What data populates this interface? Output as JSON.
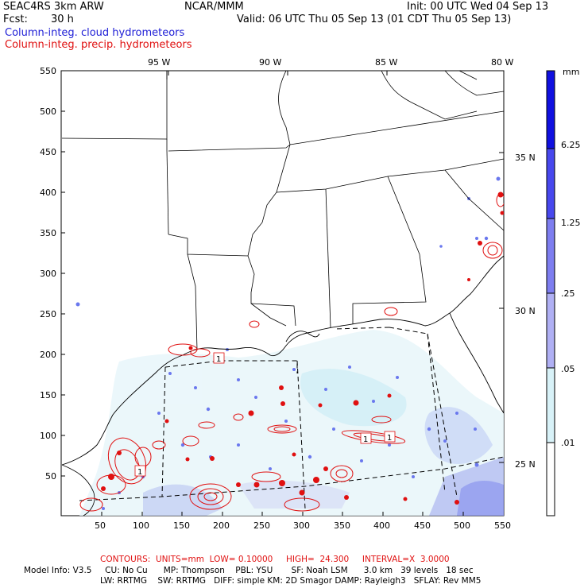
{
  "header": {
    "model": "SEAC4RS  3km ARW",
    "center": "NCAR/MMM",
    "init": "Init: 00 UTC Wed 04 Sep 13",
    "fcst_label": "Fcst:",
    "fcst_value": "30 h",
    "valid": "Valid: 06 UTC Thu 05 Sep 13 (01 CDT Thu 05 Sep 13)",
    "field1": "Column-integ. cloud hydrometeors",
    "field2": "Column-integ. precip. hydrometeors"
  },
  "map": {
    "lon_labels": [
      "95 W",
      "90 W",
      "85 W",
      "80 W"
    ],
    "lat_labels": [
      "35 N",
      "30 N",
      "25 N"
    ],
    "x_ticks": [
      "50",
      "100",
      "150",
      "200",
      "250",
      "300",
      "350",
      "400",
      "450",
      "500",
      "550"
    ],
    "y_ticks": [
      "550",
      "500",
      "450",
      "400",
      "350",
      "300",
      "250",
      "200",
      "150",
      "100",
      "50"
    ],
    "contour_labels": [
      "1",
      "1",
      "1",
      "1"
    ]
  },
  "colorbar": {
    "unit": "mm",
    "levels": [
      "6.25",
      "1.25",
      ".25",
      ".05",
      ".01"
    ],
    "colors": [
      "#1010e0",
      "#4848ee",
      "#7e7ef0",
      "#b0b0f4",
      "#d8f2f8",
      "#ffffff"
    ]
  },
  "footer": {
    "contours": "CONTOURS:  UNITS=mm  LOW= 0.10000     HIGH=  24.300     INTERVAL=X  3.0000",
    "line1": "Model Info: V3.5     CU: No Cu      MP: Thompson    PBL: YSU       SF: Noah LSM      3.0 km   39 levels   18 sec",
    "line2": "LW: RRTMG    SW: RRTMG   DIFF: simple KM: 2D Smagor DAMP: Rayleigh3   SFLAY: Rev MM5"
  }
}
